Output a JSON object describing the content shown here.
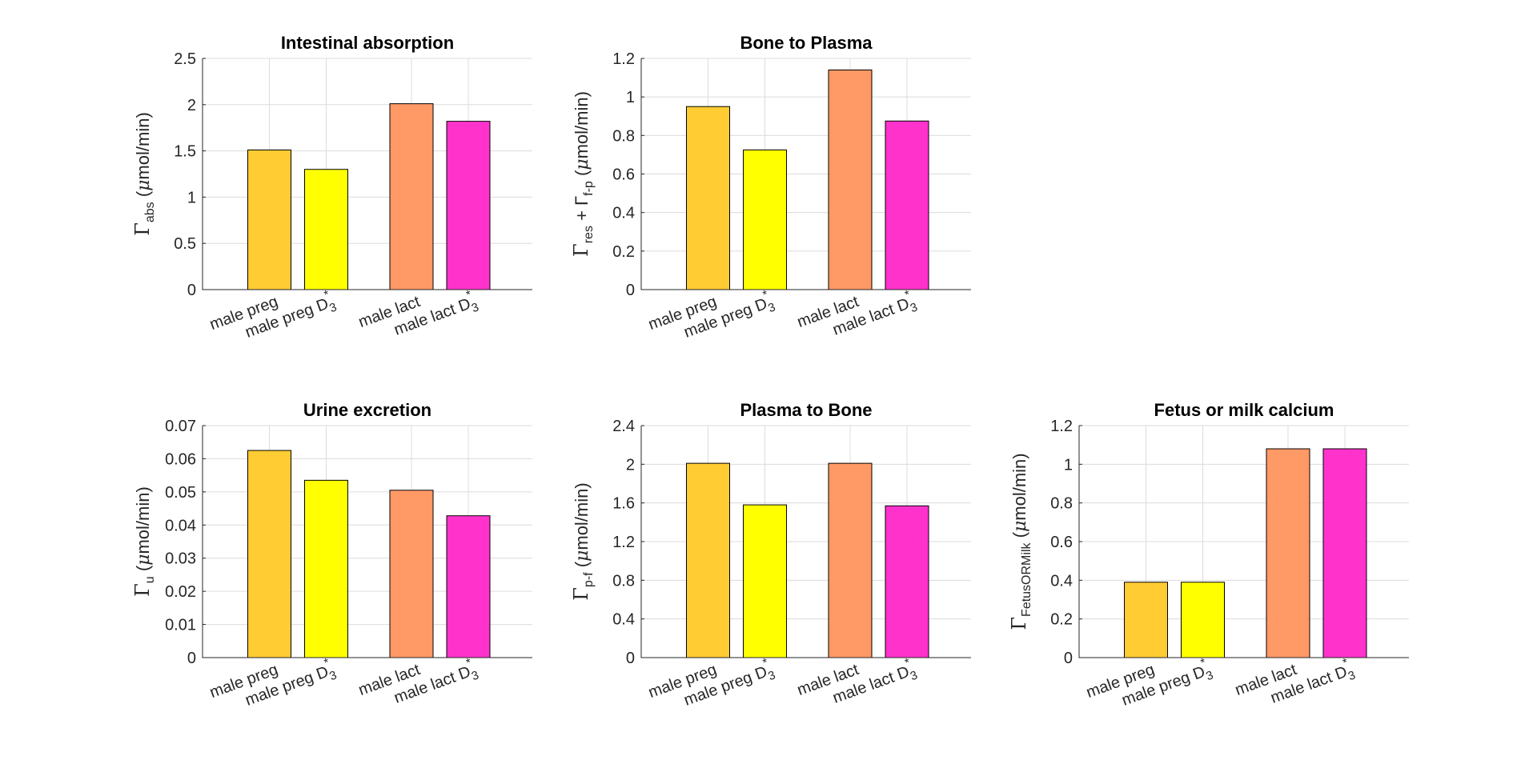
{
  "chart_data": [
    {
      "type": "bar",
      "title": "Intestinal absorption",
      "ylabel": {
        "sym": "Γ",
        "sub": "abs",
        "unit_prefix": "(",
        "mu": "μ",
        "unit": "mol/min)"
      },
      "categories": [
        {
          "text": "male preg",
          "sub": "",
          "sup": ""
        },
        {
          "text": "male preg D",
          "sub": "3",
          "sup": "*"
        },
        {
          "text": "male lact",
          "sub": "",
          "sup": ""
        },
        {
          "text": "male lact D",
          "sub": "3",
          "sup": "*"
        }
      ],
      "values": [
        1.51,
        1.3,
        2.01,
        1.82
      ],
      "ylim": [
        0,
        2.5
      ],
      "yticks": [
        "0",
        "0.5",
        "1",
        "1.5",
        "2",
        "2.5"
      ],
      "grid": true
    },
    {
      "type": "bar",
      "title": "Bone to Plasma",
      "ylabel": {
        "sym": "Γ",
        "sub": "res",
        "mid": " + Γ",
        "sub2": "f-p",
        "unit_prefix": "(",
        "mu": "μ",
        "unit": "mol/min)"
      },
      "categories": [
        {
          "text": "male preg",
          "sub": "",
          "sup": ""
        },
        {
          "text": "male preg D",
          "sub": "3",
          "sup": "*"
        },
        {
          "text": "male lact",
          "sub": "",
          "sup": ""
        },
        {
          "text": "male lact D",
          "sub": "3",
          "sup": "*"
        }
      ],
      "values": [
        0.95,
        0.725,
        1.14,
        0.875
      ],
      "ylim": [
        0,
        1.2
      ],
      "yticks": [
        "0",
        "0.2",
        "0.4",
        "0.6",
        "0.8",
        "1",
        "1.2"
      ],
      "grid": true
    },
    {
      "type": "bar",
      "title": "Urine excretion",
      "ylabel": {
        "sym": "Γ",
        "sub": "u",
        "unit_prefix": "(",
        "mu": "μ",
        "unit": "mol/min)"
      },
      "categories": [
        {
          "text": "male preg",
          "sub": "",
          "sup": ""
        },
        {
          "text": "male preg D",
          "sub": "3",
          "sup": "*"
        },
        {
          "text": "male lact",
          "sub": "",
          "sup": ""
        },
        {
          "text": "male lact D",
          "sub": "3",
          "sup": "*"
        }
      ],
      "values": [
        0.0625,
        0.0535,
        0.0505,
        0.0428
      ],
      "ylim": [
        0,
        0.07
      ],
      "yticks": [
        "0",
        "0.01",
        "0.02",
        "0.03",
        "0.04",
        "0.05",
        "0.06",
        "0.07"
      ],
      "grid": true
    },
    {
      "type": "bar",
      "title": "Plasma to Bone",
      "ylabel": {
        "sym": "Γ",
        "sub": "p-f",
        "unit_prefix": "(",
        "mu": "μ",
        "unit": "mol/min)"
      },
      "categories": [
        {
          "text": "male preg",
          "sub": "",
          "sup": ""
        },
        {
          "text": "male preg D",
          "sub": "3",
          "sup": "*"
        },
        {
          "text": "male lact",
          "sub": "",
          "sup": ""
        },
        {
          "text": "male lact D",
          "sub": "3",
          "sup": "*"
        }
      ],
      "values": [
        2.01,
        1.58,
        2.01,
        1.57
      ],
      "ylim": [
        0,
        2.4
      ],
      "yticks": [
        "0",
        "0.4",
        "0.8",
        "1.2",
        "1.6",
        "2",
        "2.4"
      ],
      "grid": true
    },
    {
      "type": "bar",
      "title": "Fetus or milk calcium",
      "ylabel": {
        "sym": "Γ",
        "sub": "FetusORMilk",
        "unit_prefix": "(",
        "mu": "μ",
        "unit": "mol/min)"
      },
      "categories": [
        {
          "text": "male preg",
          "sub": "",
          "sup": ""
        },
        {
          "text": "male preg D",
          "sub": "3",
          "sup": "*"
        },
        {
          "text": "male lact",
          "sub": "",
          "sup": ""
        },
        {
          "text": "male lact D",
          "sub": "3",
          "sup": "*"
        }
      ],
      "values": [
        0.39,
        0.39,
        1.08,
        1.08
      ],
      "ylim": [
        0,
        1.2
      ],
      "yticks": [
        "0",
        "0.2",
        "0.4",
        "0.6",
        "0.8",
        "1",
        "1.2"
      ],
      "grid": true
    }
  ],
  "colors": [
    "#ffcc33",
    "#ffff00",
    "#ff9966",
    "#ff33cc"
  ]
}
